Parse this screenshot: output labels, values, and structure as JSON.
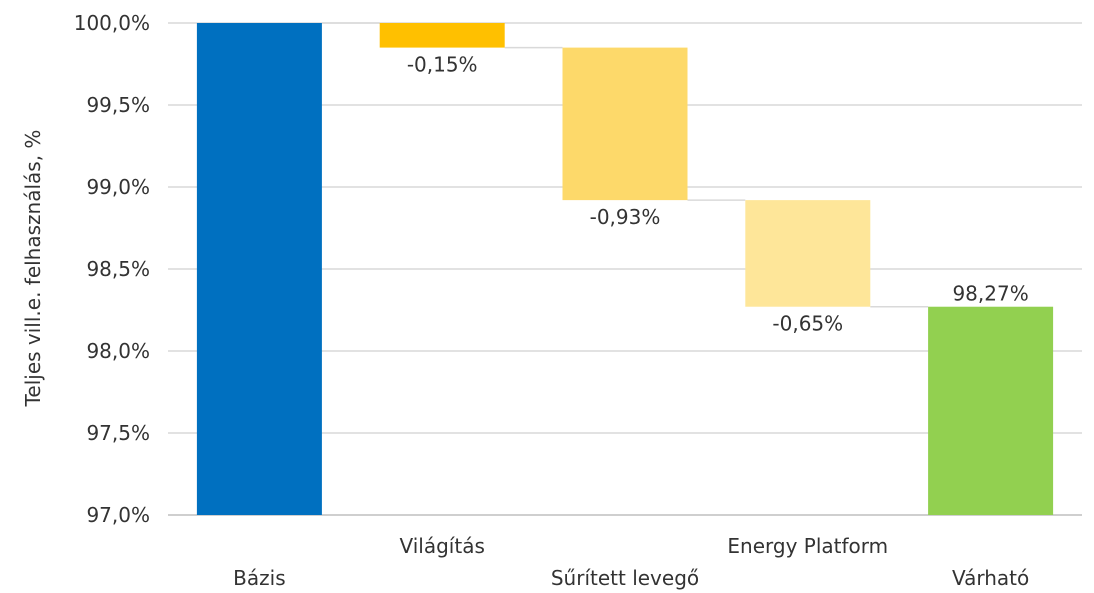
{
  "chart_data": {
    "type": "bar",
    "subtype": "waterfall",
    "ylabel": "Teljes vill.e. felhasználás, %",
    "ylim": [
      97.0,
      100.0
    ],
    "y_ticks": [
      "100,0%",
      "99,5%",
      "99,0%",
      "98,5%",
      "98,0%",
      "97,5%",
      "97,0%"
    ],
    "y_tick_values": [
      100.0,
      99.5,
      99.0,
      98.5,
      98.0,
      97.5,
      97.0
    ],
    "grid": true,
    "legend": "none",
    "bars": [
      {
        "category": "Bázis",
        "kind": "total",
        "start": 97.0,
        "end": 100.0,
        "label": "",
        "color": "#0070C0"
      },
      {
        "category": "Világítás",
        "kind": "delta",
        "start": 100.0,
        "end": 99.85,
        "label": "-0,15%",
        "color": "#FFC000"
      },
      {
        "category": "Sűrített levegő",
        "kind": "delta",
        "start": 99.85,
        "end": 98.92,
        "label": "-0,93%",
        "color": "#FDD96A"
      },
      {
        "category": "Energy Platform",
        "kind": "delta",
        "start": 98.92,
        "end": 98.27,
        "label": "-0,65%",
        "color": "#FEE699"
      },
      {
        "category": "Várható",
        "kind": "total",
        "start": 97.0,
        "end": 98.27,
        "label": "98,27%",
        "color": "#92D050"
      }
    ],
    "category_label_rows": [
      1,
      0,
      1,
      0,
      1
    ]
  }
}
